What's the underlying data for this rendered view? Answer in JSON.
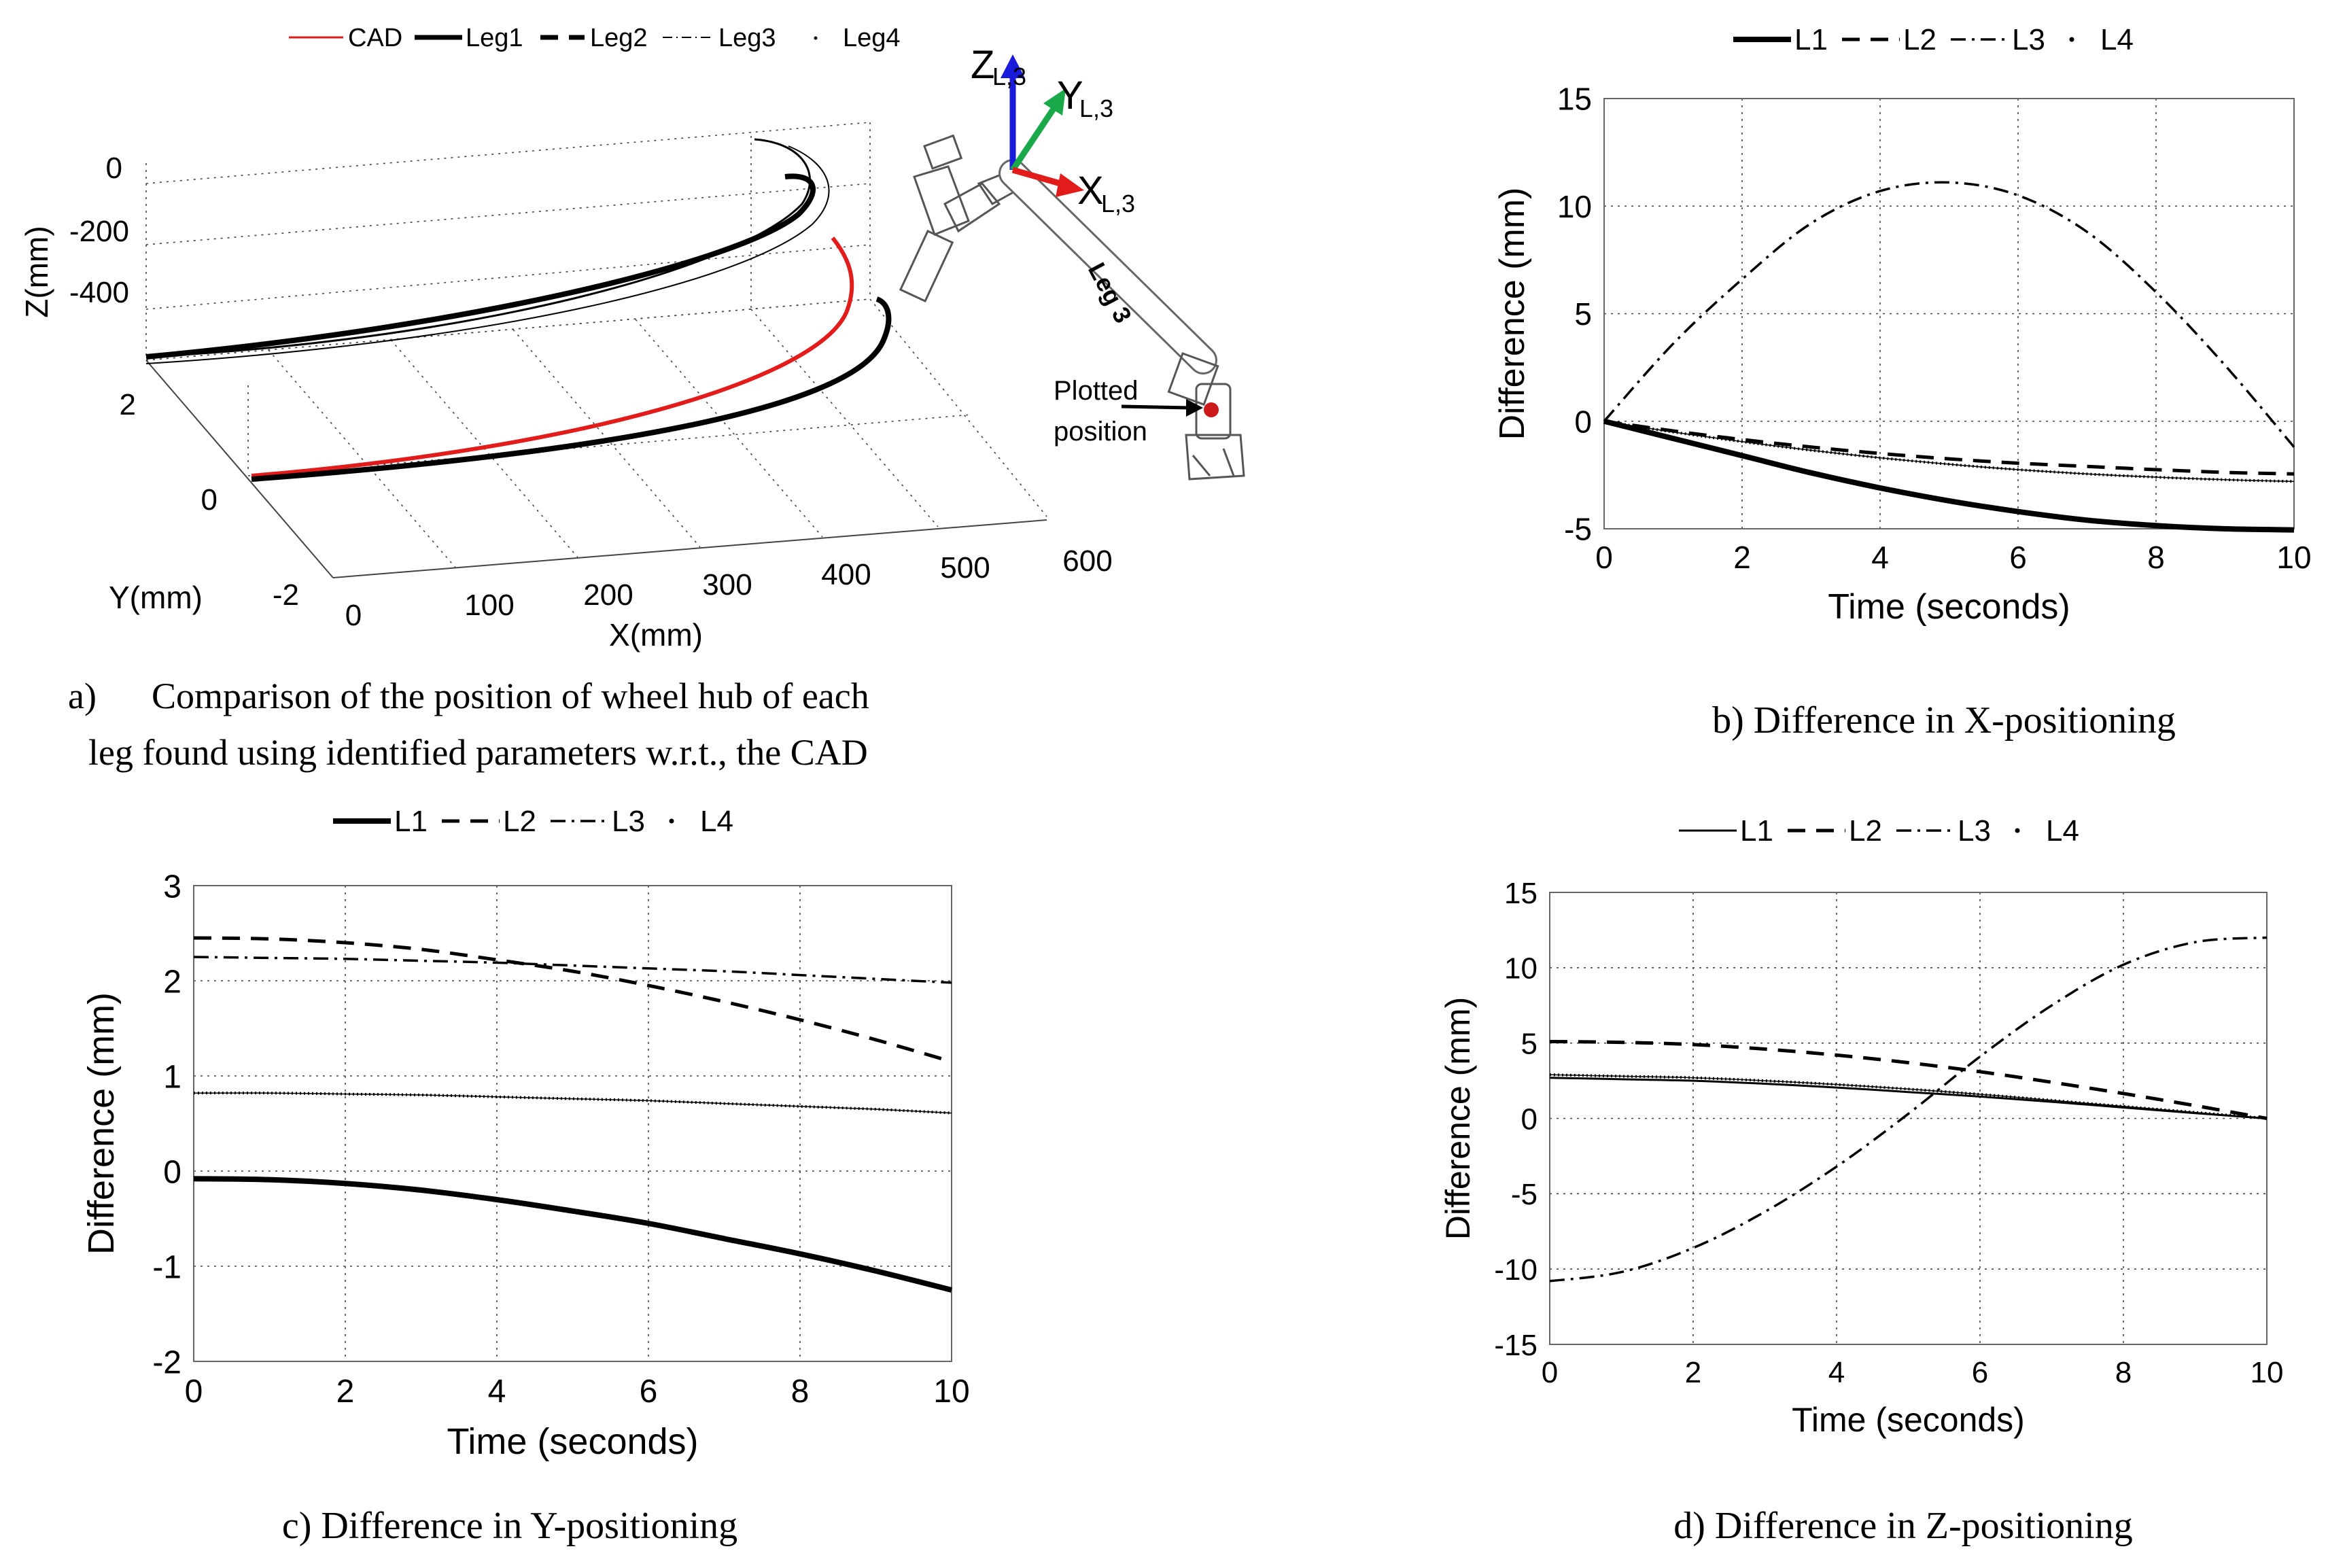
{
  "panel_a": {
    "legend": [
      {
        "label": "CAD",
        "color": "#e21b1b",
        "style": "solid-thin"
      },
      {
        "label": "Leg1",
        "color": "#000000",
        "style": "solid-thick"
      },
      {
        "label": "Leg2",
        "color": "#000000",
        "style": "dashed"
      },
      {
        "label": "Leg3",
        "color": "#000000",
        "style": "dash-dot-thin"
      },
      {
        "label": "Leg4",
        "color": "#000000",
        "style": "dotted"
      }
    ],
    "axes": {
      "xlabel": "X(mm)",
      "ylabel": "Y(mm)",
      "zlabel": "Z(mm)",
      "xticks": [
        "0",
        "100",
        "200",
        "300",
        "400",
        "500",
        "600"
      ],
      "yticks": [
        "-2",
        "0",
        "2"
      ],
      "zticks": [
        "0",
        "-200",
        "-400"
      ]
    },
    "inset": {
      "z_label": "Z",
      "z_sub": "L,3",
      "y_label": "Y",
      "y_sub": "L,3",
      "x_label": "X",
      "x_sub": "L,3",
      "link_label": "Leg 3",
      "plotted_line1": "Plotted",
      "plotted_line2": "position"
    },
    "caption_line1": "a)      Comparison of the position of wheel hub of each",
    "caption_line2": "leg found using identified parameters  w.r.t., the CAD"
  },
  "chart_data": [
    {
      "id": "b",
      "type": "line",
      "xlabel": "Time (seconds)",
      "ylabel": "Difference (mm)",
      "xlim": [
        0,
        10
      ],
      "ylim": [
        -5,
        15
      ],
      "xticks": [
        0,
        2,
        4,
        6,
        8,
        10
      ],
      "yticks": [
        -5,
        0,
        5,
        10,
        15
      ],
      "x": [
        0,
        1,
        2,
        3,
        4,
        5,
        6,
        7,
        8,
        9,
        10
      ],
      "series": [
        {
          "name": "L1",
          "style": "thick",
          "values": [
            0,
            -0.8,
            -1.6,
            -2.4,
            -3.1,
            -3.7,
            -4.2,
            -4.6,
            -4.85,
            -5.0,
            -5.05
          ]
        },
        {
          "name": "L2",
          "style": "dashed",
          "values": [
            0,
            -0.45,
            -0.85,
            -1.2,
            -1.5,
            -1.75,
            -1.95,
            -2.1,
            -2.25,
            -2.38,
            -2.45
          ]
        },
        {
          "name": "L3",
          "style": "dashdot",
          "values": [
            0,
            3.6,
            6.6,
            9.2,
            10.7,
            11.1,
            10.5,
            8.8,
            6.0,
            2.6,
            -1.2
          ]
        },
        {
          "name": "L4",
          "style": "dotted",
          "values": [
            0,
            -0.5,
            -0.95,
            -1.35,
            -1.7,
            -2.0,
            -2.25,
            -2.45,
            -2.6,
            -2.72,
            -2.8
          ]
        }
      ],
      "caption": "b) Difference in X-positioning"
    },
    {
      "id": "c",
      "type": "line",
      "xlabel": "Time (seconds)",
      "ylabel": "Difference (mm)",
      "xlim": [
        0,
        10
      ],
      "ylim": [
        -2,
        3
      ],
      "xticks": [
        0,
        2,
        4,
        6,
        8,
        10
      ],
      "yticks": [
        -2,
        -1,
        0,
        1,
        2,
        3
      ],
      "x": [
        0,
        1,
        2,
        3,
        4,
        5,
        6,
        7,
        8,
        9,
        10
      ],
      "series": [
        {
          "name": "L1",
          "style": "thick",
          "values": [
            -0.08,
            -0.09,
            -0.13,
            -0.2,
            -0.3,
            -0.42,
            -0.55,
            -0.71,
            -0.87,
            -1.05,
            -1.25
          ]
        },
        {
          "name": "L2",
          "style": "dashed",
          "values": [
            2.45,
            2.44,
            2.4,
            2.33,
            2.22,
            2.1,
            1.95,
            1.78,
            1.59,
            1.38,
            1.15
          ]
        },
        {
          "name": "L3",
          "style": "dashdot",
          "values": [
            2.25,
            2.24,
            2.23,
            2.21,
            2.19,
            2.16,
            2.13,
            2.1,
            2.06,
            2.02,
            1.98
          ]
        },
        {
          "name": "L4",
          "style": "dotted",
          "values": [
            0.82,
            0.82,
            0.81,
            0.8,
            0.78,
            0.76,
            0.74,
            0.71,
            0.68,
            0.65,
            0.61
          ]
        }
      ],
      "caption": "c) Difference in Y-positioning"
    },
    {
      "id": "d",
      "type": "line",
      "xlabel": "Time (seconds)",
      "ylabel": "Difference (mm)",
      "xlim": [
        0,
        10
      ],
      "ylim": [
        -15,
        15
      ],
      "xticks": [
        0,
        2,
        4,
        6,
        8,
        10
      ],
      "yticks": [
        -15,
        -10,
        -5,
        0,
        5,
        10,
        15
      ],
      "x": [
        0,
        1,
        2,
        3,
        4,
        5,
        6,
        7,
        8,
        9,
        10
      ],
      "series": [
        {
          "name": "L1",
          "style": "thin",
          "values": [
            2.7,
            2.6,
            2.5,
            2.3,
            2.05,
            1.75,
            1.45,
            1.1,
            0.72,
            0.35,
            0
          ]
        },
        {
          "name": "L2",
          "style": "dashed",
          "values": [
            5.1,
            5.05,
            4.9,
            4.6,
            4.2,
            3.7,
            3.1,
            2.4,
            1.65,
            0.85,
            0
          ]
        },
        {
          "name": "L3",
          "style": "dashdot",
          "values": [
            -10.8,
            -10.2,
            -8.6,
            -6.2,
            -3.2,
            0.3,
            4.1,
            7.5,
            10.2,
            11.7,
            12.0
          ]
        },
        {
          "name": "L4",
          "style": "dotted",
          "values": [
            2.9,
            2.8,
            2.7,
            2.5,
            2.25,
            1.95,
            1.6,
            1.2,
            0.8,
            0.4,
            0
          ]
        }
      ],
      "caption": "d) Difference in Z-positioning"
    }
  ]
}
